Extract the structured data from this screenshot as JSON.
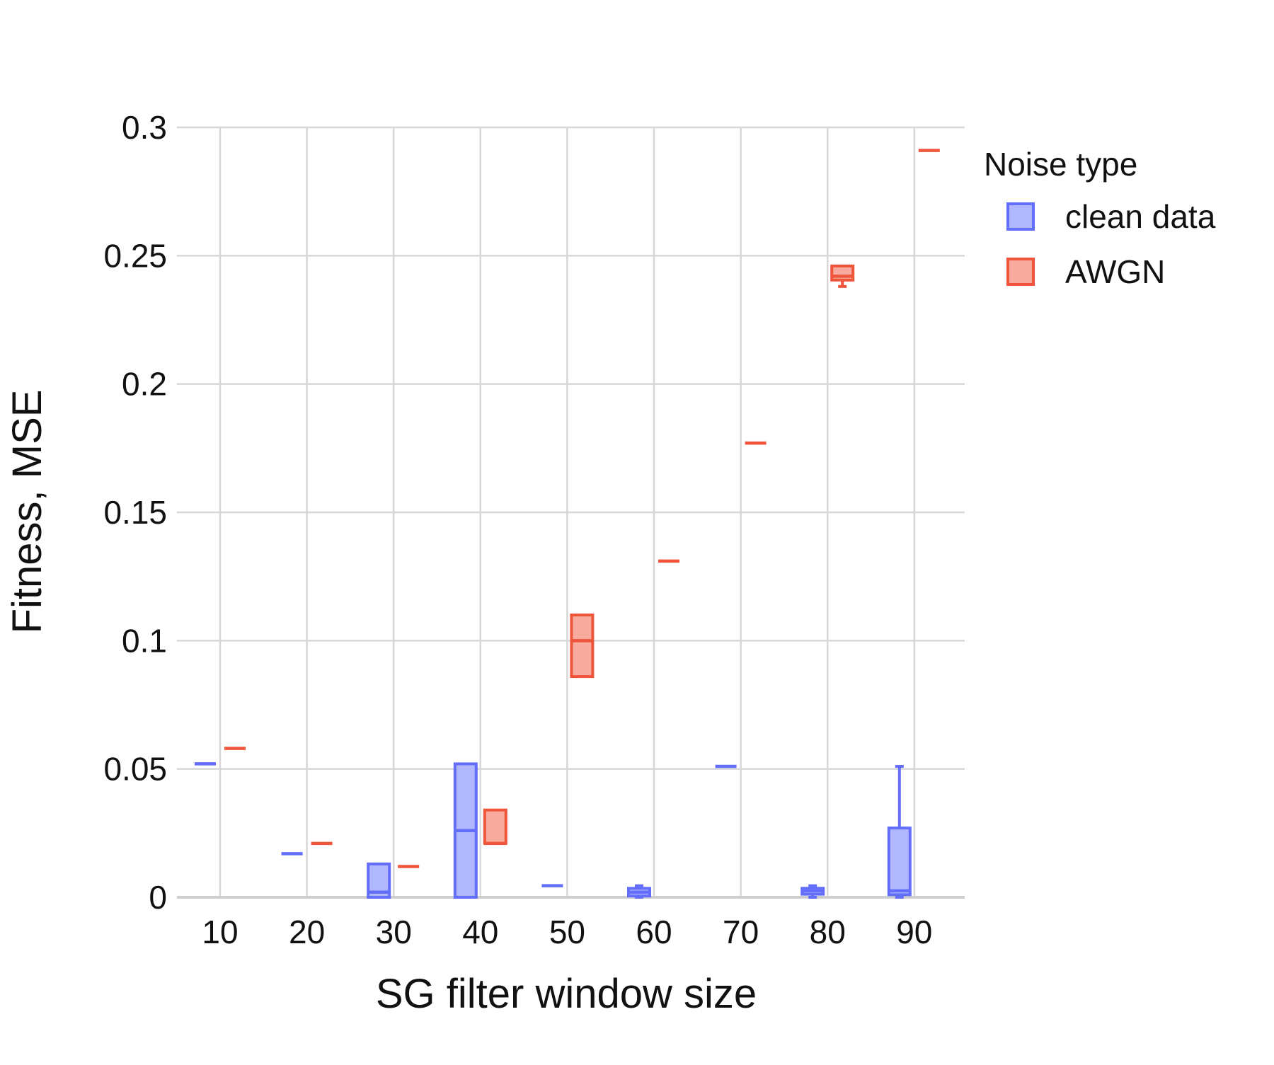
{
  "chart_data": {
    "type": "box",
    "xlabel": "SG filter window size",
    "ylabel": "Fitness, MSE",
    "ylim": [
      0,
      0.3
    ],
    "yticks": [
      0,
      0.05,
      0.1,
      0.15,
      0.2,
      0.25,
      0.3
    ],
    "ytick_labels": [
      "0",
      "0.05",
      "0.1",
      "0.15",
      "0.2",
      "0.25",
      "0.3"
    ],
    "categories": [
      "10",
      "20",
      "30",
      "40",
      "50",
      "60",
      "70",
      "80",
      "90"
    ],
    "grid": true,
    "legend": {
      "title": "Noise type",
      "position": "right"
    },
    "series": [
      {
        "name": "clean data",
        "color": "#636efa",
        "fill": "#b1b7fc",
        "boxes": [
          {
            "x": "10",
            "min": 0.052,
            "q1": 0.052,
            "median": 0.052,
            "q3": 0.052,
            "max": 0.052
          },
          {
            "x": "20",
            "min": 0.017,
            "q1": 0.017,
            "median": 0.017,
            "q3": 0.017,
            "max": 0.017
          },
          {
            "x": "30",
            "min": 0.0,
            "q1": 0.0,
            "median": 0.002,
            "q3": 0.013,
            "max": 0.013
          },
          {
            "x": "40",
            "min": 0.0,
            "q1": 0.0,
            "median": 0.026,
            "q3": 0.052,
            "max": 0.052
          },
          {
            "x": "50",
            "min": 0.0045,
            "q1": 0.0045,
            "median": 0.0045,
            "q3": 0.0045,
            "max": 0.0045
          },
          {
            "x": "60",
            "min": 0.0,
            "q1": 0.0005,
            "median": 0.002,
            "q3": 0.0035,
            "max": 0.0045
          },
          {
            "x": "70",
            "min": 0.051,
            "q1": 0.051,
            "median": 0.051,
            "q3": 0.051,
            "max": 0.051
          },
          {
            "x": "80",
            "min": 0.0,
            "q1": 0.0012,
            "median": 0.0025,
            "q3": 0.0035,
            "max": 0.0045
          },
          {
            "x": "90",
            "min": 0.0,
            "q1": 0.001,
            "median": 0.0025,
            "q3": 0.027,
            "max": 0.051
          }
        ]
      },
      {
        "name": "AWGN",
        "color": "#ef553b",
        "fill": "#f7aa9d",
        "boxes": [
          {
            "x": "10",
            "min": 0.058,
            "q1": 0.058,
            "median": 0.058,
            "q3": 0.058,
            "max": 0.058
          },
          {
            "x": "20",
            "min": 0.021,
            "q1": 0.021,
            "median": 0.021,
            "q3": 0.021,
            "max": 0.021
          },
          {
            "x": "30",
            "min": 0.012,
            "q1": 0.012,
            "median": 0.012,
            "q3": 0.012,
            "max": 0.012
          },
          {
            "x": "40",
            "min": 0.021,
            "q1": 0.021,
            "median": 0.021,
            "q3": 0.034,
            "max": 0.034
          },
          {
            "x": "50",
            "min": 0.086,
            "q1": 0.086,
            "median": 0.1,
            "q3": 0.11,
            "max": 0.11
          },
          {
            "x": "60",
            "min": 0.131,
            "q1": 0.131,
            "median": 0.131,
            "q3": 0.131,
            "max": 0.131
          },
          {
            "x": "70",
            "min": 0.177,
            "q1": 0.177,
            "median": 0.177,
            "q3": 0.177,
            "max": 0.177
          },
          {
            "x": "80",
            "min": 0.238,
            "q1": 0.2405,
            "median": 0.242,
            "q3": 0.246,
            "max": 0.246
          },
          {
            "x": "90",
            "min": 0.291,
            "q1": 0.291,
            "median": 0.291,
            "q3": 0.291,
            "max": 0.291
          }
        ]
      }
    ]
  }
}
